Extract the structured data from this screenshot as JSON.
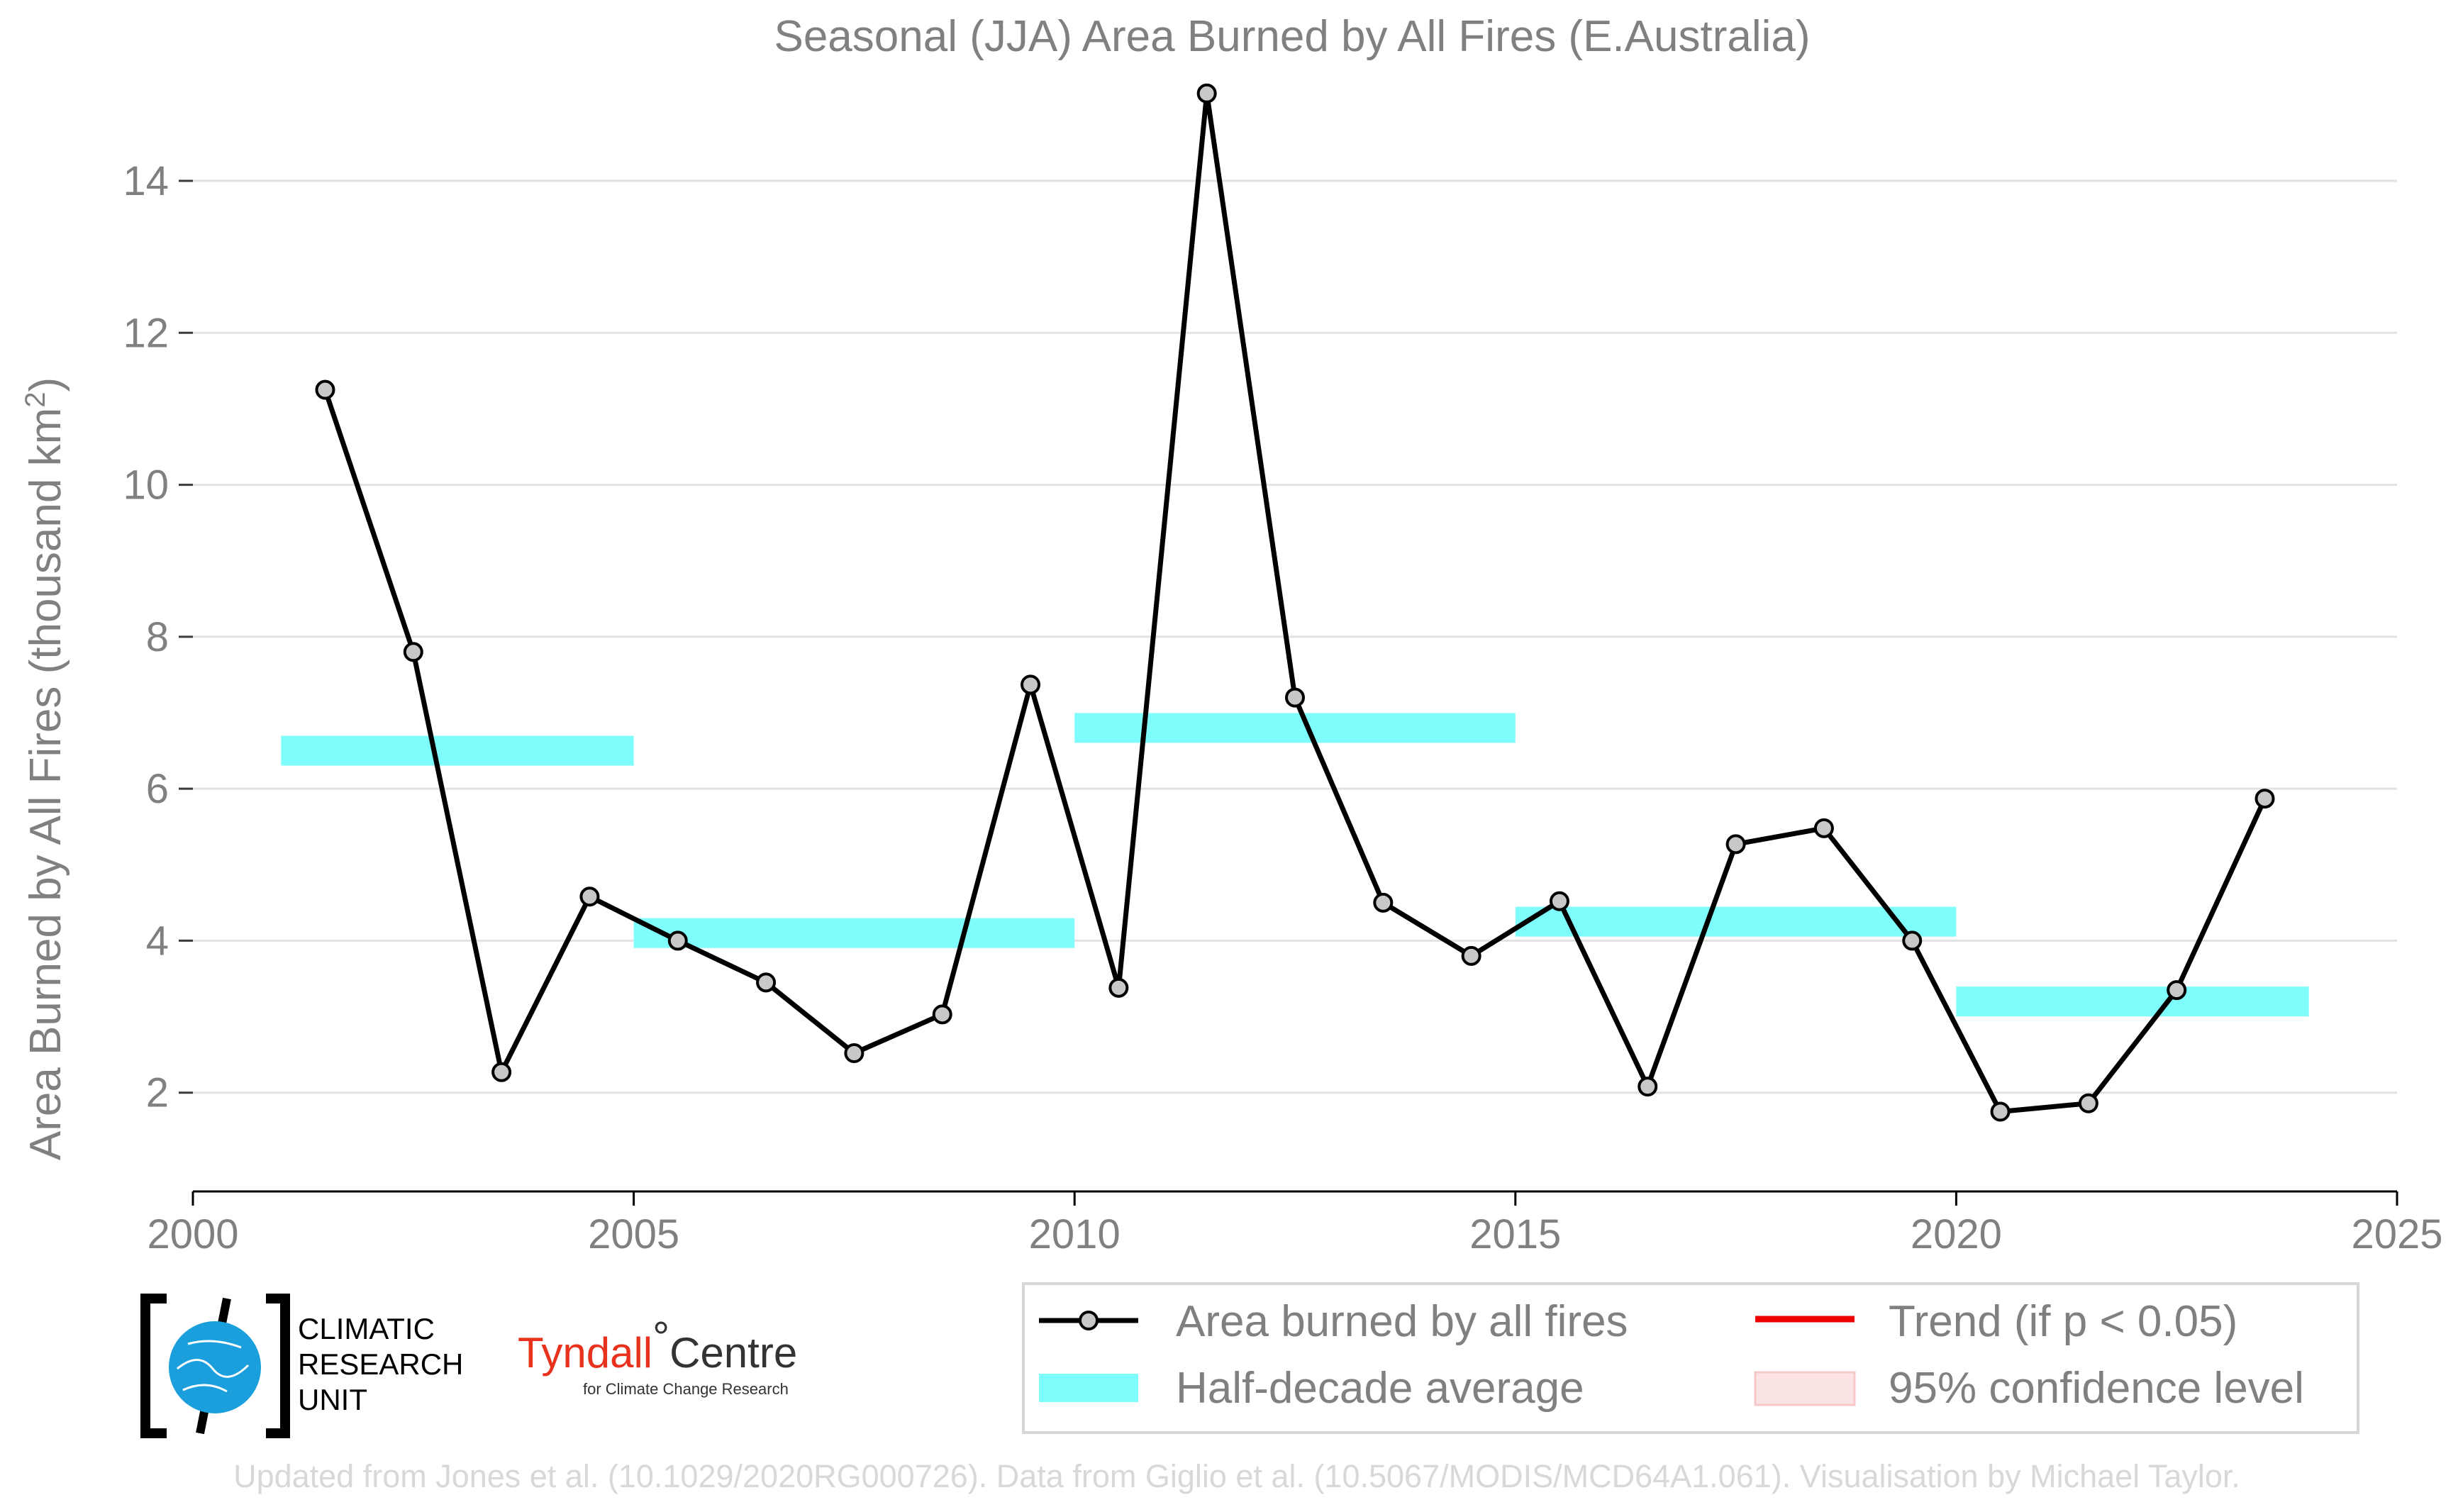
{
  "chart_data": {
    "type": "line",
    "title": "Seasonal (JJA) Area Burned by All Fires (E.Australia)",
    "ylabel": "Area Burned by All Fires (thousand km",
    "ylabel_sup": "2",
    "ylabel_close": ")",
    "xlim": [
      2000,
      2025
    ],
    "ylim": [
      0.7,
      15.4
    ],
    "xticks": [
      2000,
      2005,
      2010,
      2015,
      2020,
      2025
    ],
    "yticks": [
      2,
      4,
      6,
      8,
      10,
      12,
      14
    ],
    "grid": "horizontal",
    "series": [
      {
        "name": "Area burned by all fires",
        "type": "line-markers",
        "color": "#000000",
        "marker_fill": "#c8c8c8",
        "x": [
          2001.5,
          2002.5,
          2003.5,
          2004.5,
          2005.5,
          2006.5,
          2007.5,
          2008.5,
          2009.5,
          2010.5,
          2011.5,
          2012.5,
          2013.5,
          2014.5,
          2015.5,
          2016.5,
          2017.5,
          2018.5,
          2019.5,
          2020.5,
          2021.5,
          2022.5,
          2023.5
        ],
        "y": [
          11.25,
          7.8,
          2.27,
          4.58,
          4.0,
          3.45,
          2.52,
          3.03,
          7.37,
          3.38,
          15.15,
          7.2,
          4.5,
          3.8,
          4.52,
          2.08,
          5.27,
          5.48,
          4.0,
          1.75,
          1.86,
          3.35,
          5.87
        ]
      },
      {
        "name": "Half-decade average",
        "type": "segments",
        "color": "#7ffdfd",
        "segments": [
          {
            "x0": 2001,
            "x1": 2005,
            "y": 6.5
          },
          {
            "x0": 2005,
            "x1": 2010,
            "y": 4.1
          },
          {
            "x0": 2010,
            "x1": 2015,
            "y": 6.8
          },
          {
            "x0": 2015,
            "x1": 2020,
            "y": 4.25
          },
          {
            "x0": 2020,
            "x1": 2024,
            "y": 3.2
          }
        ]
      }
    ],
    "legend": {
      "placement": "bottom-right",
      "entries": [
        {
          "label": "Area burned by all fires",
          "kind": "line-marker",
          "color": "#000000"
        },
        {
          "label": "Trend (if p < 0.05)",
          "kind": "line",
          "color": "#ee0000"
        },
        {
          "label": "Half-decade average",
          "kind": "band",
          "color": "#7ffdfd"
        },
        {
          "label": "95% confidence level",
          "kind": "patch",
          "color": "#fde4e4"
        }
      ]
    }
  },
  "logos": {
    "cru": [
      "CLIMATIC",
      "RESEARCH",
      "UNIT"
    ],
    "tyndall_main": "Tyndall",
    "tyndall_degree": "°",
    "tyndall_centre": "Centre",
    "tyndall_sub": "for Climate Change Research"
  },
  "footer": "Updated from Jones et al. (10.1029/2020RG000726). Data from Giglio et al. (10.5067/MODIS/MCD64A1.061). Visualisation by Michael Taylor."
}
